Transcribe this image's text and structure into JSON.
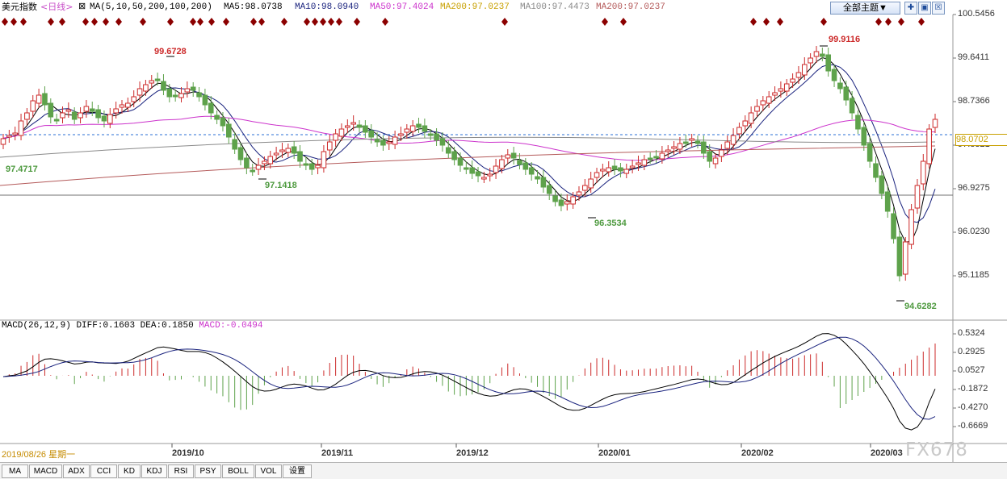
{
  "header": {
    "symbol": "美元指数",
    "period": "<日线>",
    "ma_icon": "⊠",
    "ma_text": "MA(5,10,50,200,100,200)",
    "ma5": "MA5:98.0738",
    "ma10": "MA10:98.0940",
    "ma50": "MA50:97.4024",
    "ma200a": "MA200:97.0237",
    "ma100": "MA100:97.4473",
    "ma200b": "MA200:97.0237",
    "theme_button": "全部主题▼",
    "btn_plus": "✚",
    "btn_minus": "▣",
    "btn_close": "☒"
  },
  "price_axis": [
    "100.5456",
    "99.6411",
    "98.7366",
    "97.8321",
    "96.9275",
    "96.0230",
    "95.1185"
  ],
  "current_price": "98.0702",
  "annotations": {
    "high_oct": "99.6728",
    "low_start": "97.4717",
    "low_oct": "97.1418",
    "low_dec": "96.3534",
    "high_feb": "99.9116",
    "low_mar": "94.6282"
  },
  "macd": {
    "label": "MACD(26,12,9)",
    "diff": "DIFF:0.1603",
    "dea": "DEA:0.1850",
    "macd": "MACD:-0.0494",
    "axis": [
      "0.5324",
      "0.2925",
      "0.0527",
      "-0.1872",
      "-0.4270",
      "-0.6669"
    ]
  },
  "xaxis": {
    "start": "2019/08/26 星期一",
    "months": [
      "2019/10",
      "2019/11",
      "2019/12",
      "2020/01",
      "2020/02",
      "2020/03"
    ]
  },
  "tabs": [
    "MA",
    "MACD",
    "ADX",
    "CCI",
    "KD",
    "KDJ",
    "RSI",
    "PSY",
    "BOLL",
    "VOL",
    "设置"
  ],
  "watermark": "FX678",
  "colors": {
    "up": "#cc2a2a",
    "down": "#5ea24b",
    "ma5": "#000000",
    "ma10": "#1a237e",
    "ma50": "#cc33cc",
    "ma200": "#b45a5a",
    "ma100": "#8a8a8a",
    "diamond": "#8b0000"
  }
}
